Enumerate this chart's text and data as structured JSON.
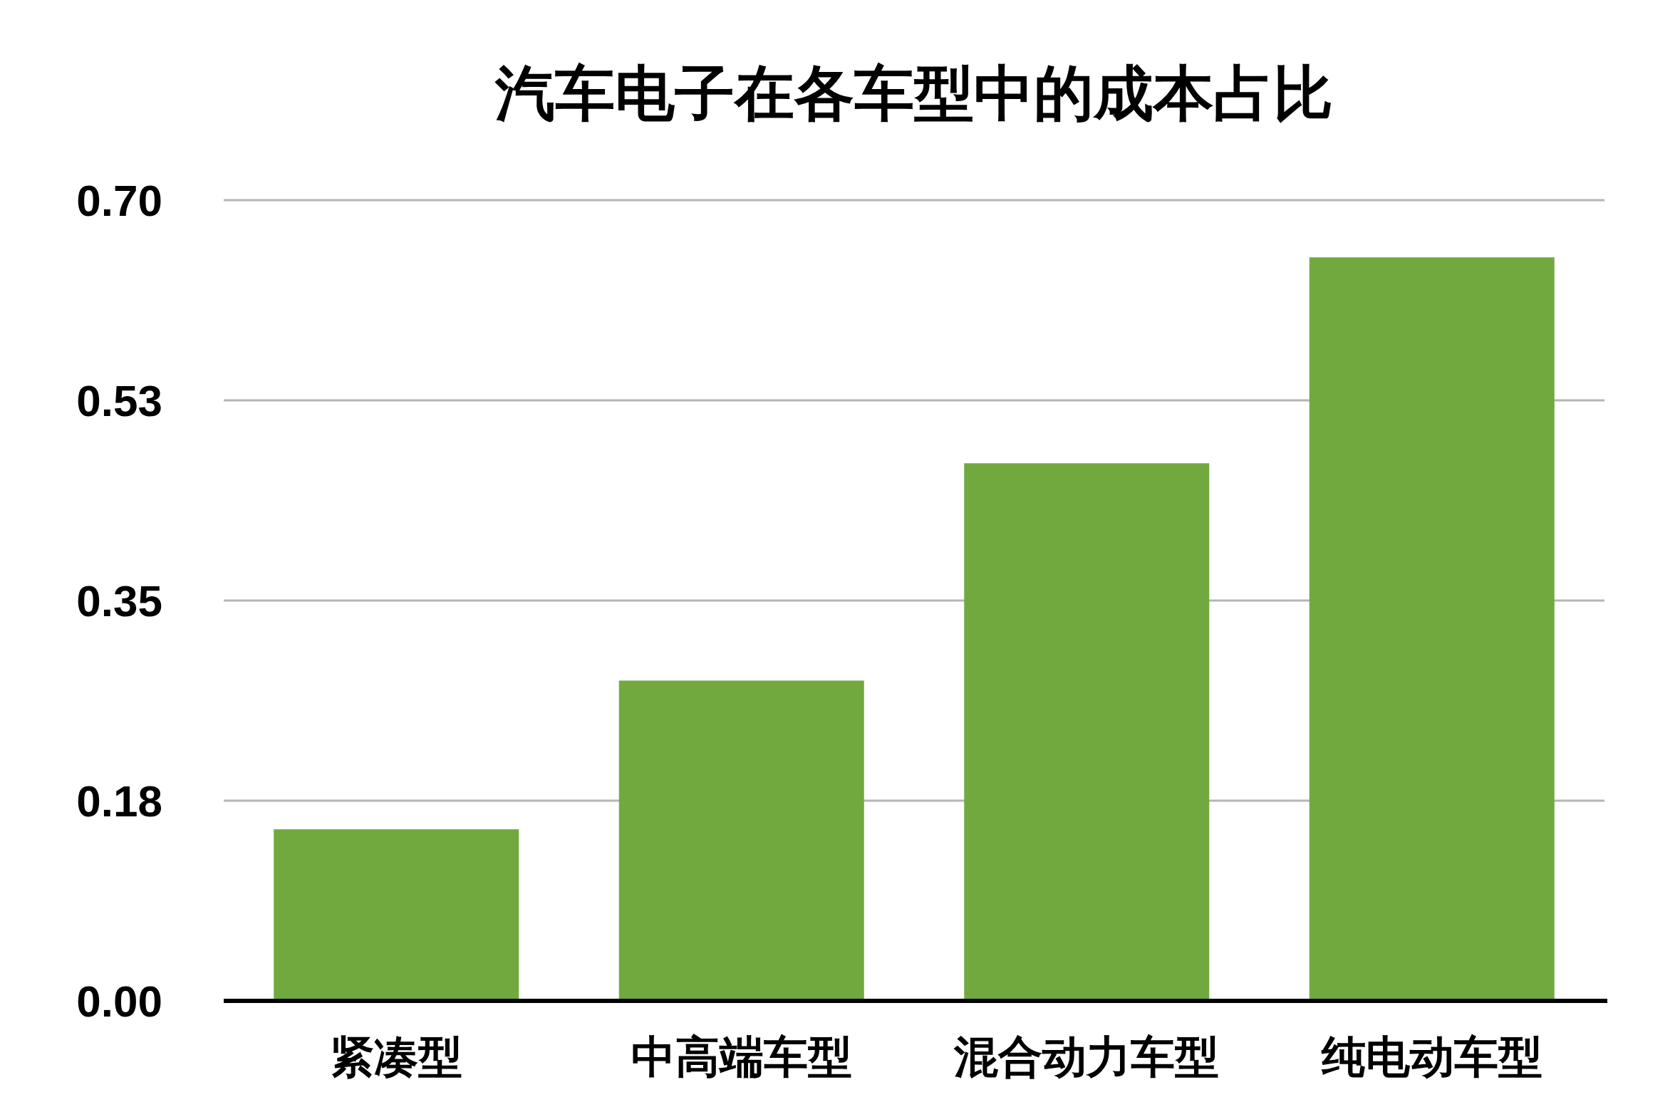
{
  "chart_data": {
    "type": "bar",
    "title": "汽车电子在各车型中的成本占比",
    "categories": [
      "紧凑型",
      "中高端车型",
      "混合动力车型",
      "纯电动车型"
    ],
    "values": [
      0.15,
      0.28,
      0.47,
      0.65
    ],
    "color": "#71a93f",
    "ylim": [
      0,
      0.7
    ],
    "yticks": [
      {
        "value": 0,
        "label": "0.00"
      },
      {
        "value": 0.175,
        "label": "0.18"
      },
      {
        "value": 0.35,
        "label": "0.35"
      },
      {
        "value": 0.525,
        "label": "0.53"
      },
      {
        "value": 0.7,
        "label": "0.70"
      }
    ],
    "grid": "y",
    "legend": false
  }
}
